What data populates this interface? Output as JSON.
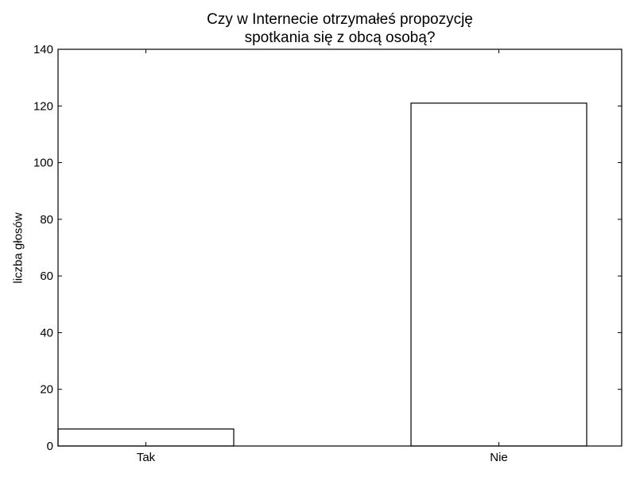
{
  "chart_data": {
    "type": "bar",
    "title_lines": [
      "Czy w Internecie otrzymałeś propozycję",
      "spotkania się z obcą osobą?"
    ],
    "xlabel": "",
    "ylabel": "liczba głosów",
    "categories": [
      "Tak",
      "Nie"
    ],
    "values": [
      6,
      121
    ],
    "ylim": [
      0,
      140
    ],
    "yticks": [
      0,
      20,
      40,
      60,
      80,
      100,
      120,
      140
    ],
    "grid": false,
    "bar_fill": "#ffffff",
    "bar_edge": "#000000"
  }
}
